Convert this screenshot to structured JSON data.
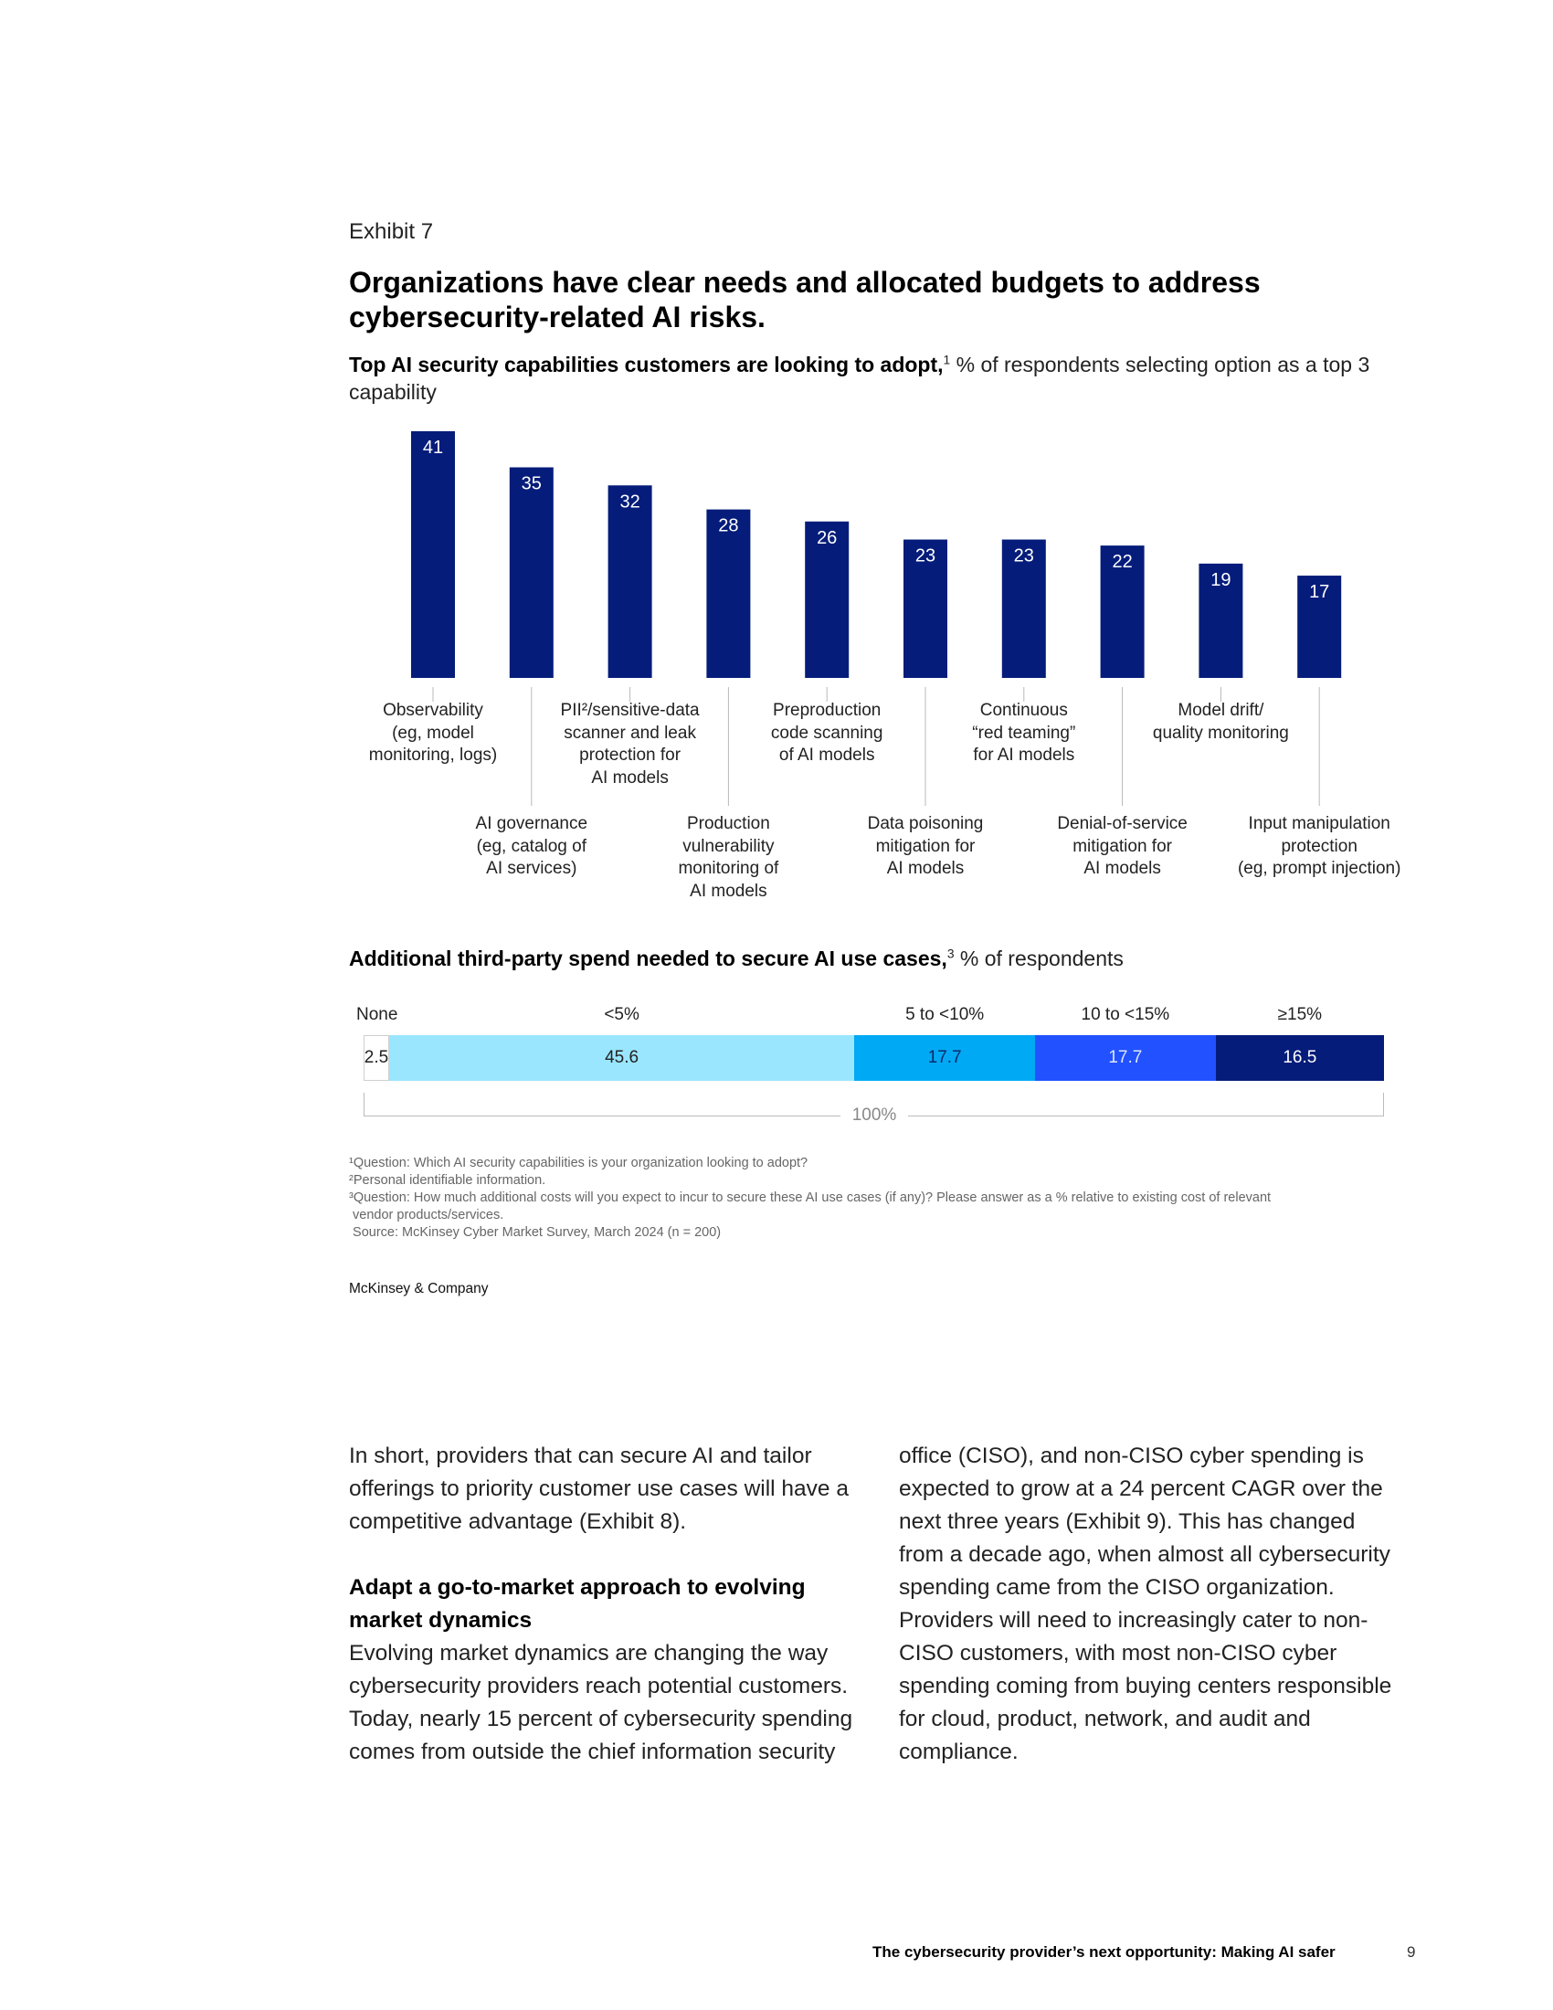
{
  "exhibit_label": "Exhibit 7",
  "title": "Organizations have clear needs and allocated budgets to address cybersecurity-related AI risks.",
  "capabilities_subtitle": {
    "bold": "Top AI security capabilities customers are looking to adopt,",
    "footnote_mark": "1",
    "rest": " % of respondents selecting option as a top 3 capability"
  },
  "spend_subtitle": {
    "bold": "Additional third-party spend needed to secure AI use cases,",
    "footnote_mark": "3",
    "rest": " % of respondents"
  },
  "chart_data": [
    {
      "type": "bar",
      "title": "Top AI security capabilities customers are looking to adopt",
      "ylabel": "% of respondents selecting option as a top 3 capability",
      "ylim": [
        0,
        41
      ],
      "categories": [
        "Observability\n(eg, model\nmonitoring, logs)",
        "AI governance\n(eg, catalog of\nAI services)",
        "PII²/sensitive-data\nscanner and leak\nprotection for\nAI models",
        "Production\nvulnerability\nmonitoring of\nAI models",
        "Preproduction\ncode scanning\nof AI models",
        "Data poisoning\nmitigation for\nAI models",
        "Continuous\n“red teaming”\nfor AI models",
        "Denial-of-service\nmitigation for\nAI models",
        "Model drift/\nquality monitoring",
        "Input manipulation\nprotection\n(eg, prompt injection)"
      ],
      "values": [
        41,
        35,
        32,
        28,
        26,
        23,
        23,
        22,
        19,
        17
      ],
      "value_labels": [
        "41",
        "35",
        "32",
        "28",
        "26",
        "23",
        "23",
        "22",
        "19",
        "17"
      ],
      "bar_color": "#051c7a",
      "grid": false
    },
    {
      "type": "bar",
      "orientation": "horizontal-stacked",
      "title": "Additional third-party spend needed to secure AI use cases",
      "ylabel": "% of respondents",
      "categories": [
        "None",
        "<5%",
        "5 to <10%",
        "10 to <15%",
        "≥15%"
      ],
      "values": [
        2.5,
        45.6,
        17.7,
        17.7,
        16.5
      ],
      "value_labels": [
        "2.5",
        "45.6",
        "17.7",
        "17.7",
        "16.5"
      ],
      "colors": [
        "#ffffff",
        "#9ae6ff",
        "#00a9f4",
        "#2251ff",
        "#051c7a"
      ],
      "text_colors": [
        "#222222",
        "#222222",
        "#0b2a6b",
        "#dce6ff",
        "#ffffff"
      ],
      "total_label": "100%"
    }
  ],
  "footnotes": [
    "¹Question: Which AI security capabilities is your organization looking to adopt?",
    "²Personal identifiable information.",
    "³Question: How much additional costs will you expect to incur to secure these AI use cases (if any)? Please answer as a % relative to existing cost of relevant\n vendor products/services.",
    " Source: McKinsey Cyber Market Survey, March 2024 (n = 200)"
  ],
  "brand": "McKinsey & Company",
  "body": {
    "left_intro": "In short, providers that can secure AI and tailor offerings to priority customer use cases will have a competitive advantage (Exhibit 8).",
    "left_heading": "Adapt a go-to-market approach to evolving market dynamics",
    "left_para": "Evolving market dynamics are changing the way cybersecurity providers reach potential customers. Today, nearly 15 percent of cybersecurity spending comes from outside the chief information security",
    "right_para": "office (CISO), and non-CISO cyber spending is expected to grow at a 24 percent CAGR over the next three years (Exhibit 9). This has changed from a decade ago, when almost all cybersecurity spending came from the CISO organization. Providers will need to increasingly cater to non-CISO customers, with most non-CISO cyber spending coming from buying centers responsible for cloud, product, network, and audit and compliance."
  },
  "footer": {
    "title": "The cybersecurity provider’s next opportunity: Making AI safer",
    "page": "9"
  }
}
